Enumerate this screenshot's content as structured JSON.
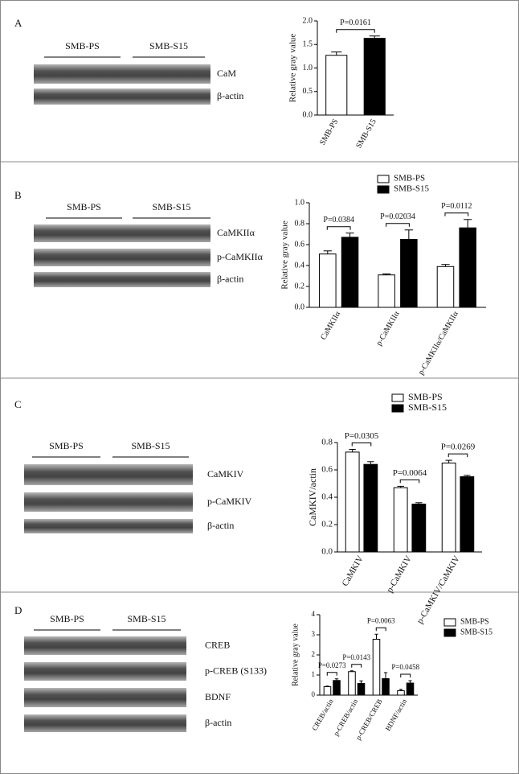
{
  "panels": [
    {
      "letter": "A",
      "groups": [
        "SMB-PS",
        "SMB-S15"
      ],
      "bands": [
        "CaM",
        "β-actin"
      ]
    },
    {
      "letter": "B",
      "groups": [
        "SMB-PS",
        "SMB-S15"
      ],
      "bands": [
        "CaMKIIα",
        "p-CaMKIIα",
        "β-actin"
      ]
    },
    {
      "letter": "C",
      "groups": [
        "SMB-PS",
        "SMB-S15"
      ],
      "bands": [
        "CaMKIV",
        "p-CaMKIV",
        "β-actin"
      ]
    },
    {
      "letter": "D",
      "groups": [
        "SMB-PS",
        "SMB-S15"
      ],
      "bands": [
        "CREB",
        "p-CREB (S133)",
        "BDNF",
        "β-actin"
      ]
    }
  ],
  "chart_data": [
    {
      "type": "bar",
      "ylabel": "Relative gray value",
      "categories": [
        "SMB-PS",
        "SMB-S15"
      ],
      "values": [
        1.27,
        1.63
      ],
      "errors": [
        0.07,
        0.05
      ],
      "colors": [
        "#ffffff",
        "#000000"
      ],
      "annotations": [
        "P=0.0161"
      ],
      "ylim": [
        0,
        2
      ],
      "yticks": [
        {
          "value": 0,
          "label": "0.0"
        },
        {
          "value": 0.5,
          "label": "0.5"
        },
        {
          "value": 1,
          "label": "1.0"
        },
        {
          "value": 1.5,
          "label": "1.5"
        },
        {
          "value": 2,
          "label": "2.0"
        }
      ]
    },
    {
      "type": "bar",
      "ylabel": "Relative gray value",
      "categories": [
        "CaMKIIα",
        "p-CaMKIIα",
        "p-CaMKIIα/CaMKIIα"
      ],
      "series": [
        {
          "name": "SMB-PS",
          "color": "#ffffff",
          "values": [
            0.51,
            0.31,
            0.39
          ],
          "errors": [
            0.03,
            0.01,
            0.02
          ]
        },
        {
          "name": "SMB-S15",
          "color": "#000000",
          "values": [
            0.67,
            0.65,
            0.76
          ],
          "errors": [
            0.04,
            0.09,
            0.08
          ]
        }
      ],
      "annotations": [
        "P=0.0384",
        "P=0.02034",
        "P=0.0112"
      ],
      "ylim": [
        0,
        1
      ],
      "yticks": [
        {
          "value": 0,
          "label": "0.0"
        },
        {
          "value": 0.2,
          "label": "0.2"
        },
        {
          "value": 0.4,
          "label": "0.4"
        },
        {
          "value": 0.6,
          "label": "0.6"
        },
        {
          "value": 0.8,
          "label": "0.8"
        },
        {
          "value": 1,
          "label": "1.0"
        }
      ]
    },
    {
      "type": "bar",
      "ylabel": "CaMKIV/actin",
      "categories": [
        "CaMKIV",
        "p-CaMKIV",
        "p-CaMKIV/CaMKIV"
      ],
      "series": [
        {
          "name": "SMB-PS",
          "color": "#ffffff",
          "values": [
            0.73,
            0.47,
            0.65
          ],
          "errors": [
            0.02,
            0.01,
            0.02
          ]
        },
        {
          "name": "SMB-S15",
          "color": "#000000",
          "values": [
            0.64,
            0.35,
            0.55
          ],
          "errors": [
            0.02,
            0.01,
            0.01
          ]
        }
      ],
      "annotations": [
        "P=0.0305",
        "P=0.0064",
        "P=0.0269"
      ],
      "ylim": [
        0,
        0.8
      ],
      "yticks": [
        {
          "value": 0,
          "label": "0.0"
        },
        {
          "value": 0.2,
          "label": "0.2"
        },
        {
          "value": 0.4,
          "label": "0.4"
        },
        {
          "value": 0.6,
          "label": "0.6"
        },
        {
          "value": 0.8,
          "label": "0.8"
        }
      ]
    },
    {
      "type": "bar",
      "ylabel": "Relative gray value",
      "categories": [
        "CREB/actin",
        "p-CREB/actin",
        "p-CREB/CREB",
        "BDNF/actin"
      ],
      "series": [
        {
          "name": "SMB-PS",
          "color": "#ffffff",
          "values": [
            0.42,
            1.17,
            2.78,
            0.22
          ],
          "errors": [
            0.03,
            0.04,
            0.25,
            0.07
          ]
        },
        {
          "name": "SMB-S15",
          "color": "#000000",
          "values": [
            0.73,
            0.58,
            0.82,
            0.6
          ],
          "errors": [
            0.08,
            0.13,
            0.3,
            0.12
          ]
        }
      ],
      "annotations": [
        "P=0.0273",
        "P=0.0143",
        "P=0.0063",
        "P=0.0458"
      ],
      "ylim": [
        0,
        4
      ],
      "yticks": [
        0,
        1,
        2,
        3,
        4
      ]
    }
  ]
}
